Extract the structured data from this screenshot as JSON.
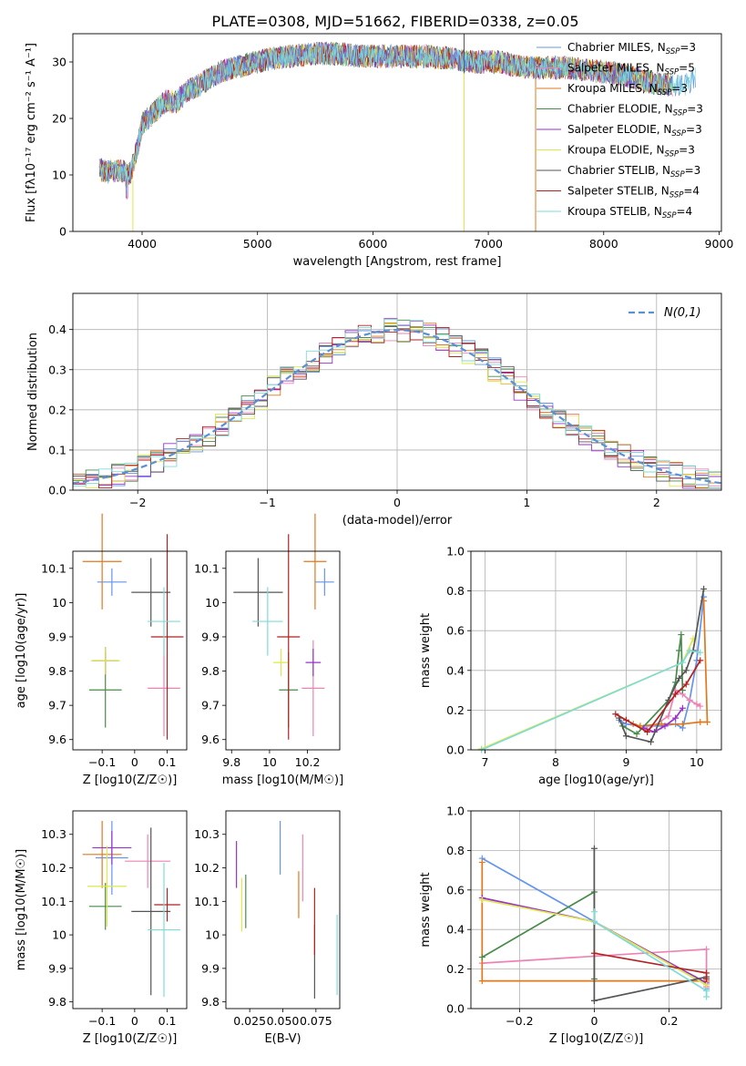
{
  "figure_title": "PLATE=0308, MJD=51662, FIBERID=0338, z=0.05",
  "model_colors": [
    "#6495ed",
    "#ee82b4",
    "#e0781e",
    "#4a8a4a",
    "#9a32cd",
    "#dde84a",
    "#555555",
    "#b22222",
    "#7fdbd6"
  ],
  "chart_data": [
    {
      "type": "line",
      "title": "PLATE=0308, MJD=51662, FIBERID=0338, z=0.05",
      "xlabel": "wavelength [Angstrom, rest frame]",
      "ylabel": "Flux [fλ10⁻¹⁷ erg cm⁻² s⁻¹ A⁻¹]",
      "xlim": [
        3400,
        9020
      ],
      "ylim": [
        0,
        35
      ],
      "xticks": [
        4000,
        5000,
        6000,
        7000,
        8000,
        9000
      ],
      "yticks": [
        0,
        10,
        20,
        30
      ],
      "grid": false,
      "legend": "top-right",
      "legend_entries": [
        "Chabrier MILES, N_SSP=3",
        "Salpeter MILES, N_SSP=5",
        "Kroupa MILES, N_SSP=3",
        "Chabrier ELODIE, N_SSP=3",
        "Salpeter ELODIE, N_SSP=3",
        "Kroupa ELODIE, N_SSP=3",
        "Chabrier STELIB, N_SSP=3",
        "Salpeter STELIB, N_SSP=4",
        "Kroupa STELIB, N_SSP=4"
      ],
      "spectrum_envelope": {
        "x": [
          3630,
          3700,
          3800,
          3900,
          3950,
          4000,
          4100,
          4200,
          4300,
          4400,
          4500,
          4700,
          4900,
          5100,
          5300,
          5500,
          5700,
          5900,
          6100,
          6300,
          6500,
          6700,
          6900,
          7100,
          7300,
          7500,
          7700,
          7900,
          8100,
          8300,
          8500,
          8700,
          8800
        ],
        "y": [
          11,
          10.5,
          10.8,
          10.2,
          14,
          19,
          21,
          23,
          23,
          25,
          26,
          28.5,
          29.5,
          30.5,
          31,
          31.5,
          31.5,
          31,
          31,
          31,
          31,
          30.5,
          30,
          30,
          29,
          29,
          29,
          28.5,
          28,
          27,
          26,
          26,
          27
        ]
      }
    },
    {
      "type": "bar",
      "xlabel": "(data-model)/error",
      "ylabel": "Normed distribution",
      "xlim": [
        -2.5,
        2.5
      ],
      "ylim": [
        0,
        0.49
      ],
      "xticks": [
        -2,
        -1,
        0,
        1,
        2
      ],
      "yticks": [
        0.0,
        0.1,
        0.2,
        0.3,
        0.4
      ],
      "grid": true,
      "legend": "top-right",
      "gaussian_label": "N(0,1)",
      "bin_width": 0.1
    },
    {
      "type": "scatter",
      "xlabel": "Z [log10(Z/Z☉)]",
      "ylabel": "age  [log10(age/yr)]",
      "xlim": [
        -0.19,
        0.16
      ],
      "ylim": [
        9.57,
        10.15
      ],
      "xticks": [
        -0.1,
        0.0,
        0.1
      ],
      "yticks": [
        9.6,
        9.7,
        9.8,
        9.9,
        10.0,
        10.1
      ],
      "points": [
        {
          "x": -0.07,
          "y": 10.06,
          "xerr": 0.045,
          "yerr": 0.04
        },
        {
          "x": 0.09,
          "y": 9.75,
          "xerr": 0.05,
          "yerr": 0.14
        },
        {
          "x": -0.1,
          "y": 10.12,
          "xerr": 0.06,
          "yerr": 0.14
        },
        {
          "x": -0.09,
          "y": 9.745,
          "xerr": 0.05,
          "yerr": 0.11
        },
        {
          "x": -0.09,
          "y": 9.83,
          "xerr": 0.04,
          "yerr": 0.04
        },
        {
          "x": -0.09,
          "y": 9.83,
          "xerr": 0.045,
          "yerr": 0.04
        },
        {
          "x": 0.05,
          "y": 10.03,
          "xerr": 0.06,
          "yerr": 0.1
        },
        {
          "x": 0.1,
          "y": 9.9,
          "xerr": 0.05,
          "yerr": 0.3
        },
        {
          "x": 0.09,
          "y": 9.945,
          "xerr": 0.05,
          "yerr": 0.1
        }
      ]
    },
    {
      "type": "scatter",
      "xlabel": "mass [log10(M/M☉)]",
      "ylabel": "",
      "xlim": [
        9.77,
        10.37
      ],
      "ylim": [
        9.57,
        10.15
      ],
      "xticks": [
        9.8,
        10.0,
        10.2
      ],
      "yticks": [
        9.6,
        9.7,
        9.8,
        9.9,
        10.0,
        10.1
      ],
      "points": [
        {
          "x": 10.29,
          "y": 10.06,
          "xerr": 0.05,
          "yerr": 0.04
        },
        {
          "x": 10.23,
          "y": 9.75,
          "xerr": 0.06,
          "yerr": 0.14
        },
        {
          "x": 10.24,
          "y": 10.12,
          "xerr": 0.06,
          "yerr": 0.14
        },
        {
          "x": 10.1,
          "y": 9.745,
          "xerr": 0.05,
          "yerr": 0.11
        },
        {
          "x": 10.23,
          "y": 9.825,
          "xerr": 0.04,
          "yerr": 0.04
        },
        {
          "x": 10.06,
          "y": 9.825,
          "xerr": 0.04,
          "yerr": 0.04
        },
        {
          "x": 9.94,
          "y": 10.03,
          "xerr": 0.13,
          "yerr": 0.1
        },
        {
          "x": 10.1,
          "y": 9.9,
          "xerr": 0.06,
          "yerr": 0.3
        },
        {
          "x": 9.99,
          "y": 9.945,
          "xerr": 0.08,
          "yerr": 0.1
        }
      ]
    },
    {
      "type": "line",
      "xlabel": "age  [log10(age/yr)]",
      "ylabel": "mass weight",
      "xlim": [
        6.8,
        10.35
      ],
      "ylim": [
        0,
        1.0
      ],
      "xticks": [
        7,
        8,
        9,
        10
      ],
      "yticks": [
        0.0,
        0.2,
        0.4,
        0.6,
        0.8,
        1.0
      ],
      "grid": true,
      "series": [
        {
          "x": [
            8.9,
            9.0,
            9.2,
            9.5,
            9.7,
            9.8,
            9.9,
            10.0,
            10.1
          ],
          "y": [
            0.15,
            0.13,
            0.12,
            0.12,
            0.13,
            0.11,
            0.25,
            0.45,
            0.77
          ]
        },
        {
          "x": [
            9.3,
            9.6,
            9.7,
            9.8,
            9.9,
            10.0,
            10.05
          ],
          "y": [
            0.1,
            0.17,
            0.3,
            0.28,
            0.25,
            0.23,
            0.22
          ]
        },
        {
          "x": [
            9.1,
            9.2,
            9.5,
            9.8,
            10.05,
            10.15,
            10.1
          ],
          "y": [
            0.13,
            0.12,
            0.13,
            0.13,
            0.14,
            0.14,
            0.75
          ]
        },
        {
          "x": [
            8.95,
            9.15,
            9.6,
            9.7,
            9.75,
            9.78,
            9.8
          ],
          "y": [
            0.12,
            0.08,
            0.25,
            0.34,
            0.5,
            0.58,
            0.3
          ]
        },
        {
          "x": [
            9.25,
            9.4,
            9.55,
            9.7,
            9.8
          ],
          "y": [
            0.11,
            0.09,
            0.12,
            0.16,
            0.21
          ]
        },
        {
          "x": [
            6.95,
            9.8,
            9.95
          ],
          "y": [
            0.005,
            0.44,
            0.56
          ]
        },
        {
          "x": [
            8.9,
            9.0,
            9.35,
            9.6,
            9.75,
            9.85,
            9.95,
            10.1
          ],
          "y": [
            0.16,
            0.07,
            0.04,
            0.25,
            0.36,
            0.4,
            0.5,
            0.81
          ]
        },
        {
          "x": [
            8.85,
            9.0,
            9.3,
            9.7,
            9.85,
            10.05
          ],
          "y": [
            0.18,
            0.15,
            0.09,
            0.28,
            0.33,
            0.45
          ]
        },
        {
          "x": [
            6.95,
            9.8,
            9.9,
            10.05
          ],
          "y": [
            0.0,
            0.44,
            0.5,
            0.49
          ]
        }
      ]
    },
    {
      "type": "scatter",
      "xlabel": "Z [log10(Z/Z☉)]",
      "ylabel": "mass [log10(M/M☉)]",
      "xlim": [
        -0.19,
        0.16
      ],
      "ylim": [
        9.78,
        10.37
      ],
      "xticks": [
        -0.1,
        0.0,
        0.1
      ],
      "yticks": [
        9.8,
        9.9,
        10.0,
        10.1,
        10.2,
        10.3
      ],
      "points": [
        {
          "x": -0.07,
          "y": 10.23,
          "xerr": 0.05,
          "yerr": 0.11
        },
        {
          "x": 0.04,
          "y": 10.22,
          "xerr": 0.07,
          "yerr": 0.08
        },
        {
          "x": -0.1,
          "y": 10.24,
          "xerr": 0.06,
          "yerr": 0.1
        },
        {
          "x": -0.09,
          "y": 10.085,
          "xerr": 0.05,
          "yerr": 0.07
        },
        {
          "x": -0.07,
          "y": 10.26,
          "xerr": 0.06,
          "yerr": 0.05
        },
        {
          "x": -0.085,
          "y": 10.145,
          "xerr": 0.06,
          "yerr": 0.12
        },
        {
          "x": 0.05,
          "y": 10.07,
          "xerr": 0.06,
          "yerr": 0.25
        },
        {
          "x": 0.1,
          "y": 10.09,
          "xerr": 0.04,
          "yerr": 0.05
        },
        {
          "x": 0.09,
          "y": 10.015,
          "xerr": 0.05,
          "yerr": 0.2
        }
      ]
    },
    {
      "type": "scatter",
      "xlabel": "E(B-V)",
      "ylabel": "",
      "xlim": [
        0.007,
        0.093
      ],
      "ylim": [
        9.78,
        10.37
      ],
      "xticks": [
        0.025,
        0.05,
        0.075
      ],
      "xtick_labels": [
        "0.025",
        "0.050",
        "0.075"
      ],
      "yticks": [
        9.8,
        9.9,
        10.0,
        10.1,
        10.2,
        10.3
      ],
      "points": [
        {
          "x": 0.048,
          "y": 10.26,
          "xerr": 0.0,
          "yerr": 0.08
        },
        {
          "x": 0.065,
          "y": 10.2,
          "xerr": 0.0,
          "yerr": 0.1
        },
        {
          "x": 0.062,
          "y": 10.12,
          "xerr": 0.0,
          "yerr": 0.07
        },
        {
          "x": 0.022,
          "y": 10.1,
          "xerr": 0.0,
          "yerr": 0.08
        },
        {
          "x": 0.015,
          "y": 10.21,
          "xerr": 0.0,
          "yerr": 0.07
        },
        {
          "x": 0.019,
          "y": 10.09,
          "xerr": 0.0,
          "yerr": 0.08
        },
        {
          "x": 0.074,
          "y": 9.92,
          "xerr": 0.0,
          "yerr": 0.11
        },
        {
          "x": 0.074,
          "y": 10.04,
          "xerr": 0.0,
          "yerr": 0.1
        },
        {
          "x": 0.091,
          "y": 9.94,
          "xerr": 0.0,
          "yerr": 0.12
        }
      ]
    },
    {
      "type": "line",
      "xlabel": "Z [log10(Z/Z☉)]",
      "ylabel": "mass weight",
      "xlim": [
        -0.33,
        0.34
      ],
      "ylim": [
        0,
        1.0
      ],
      "xticks": [
        -0.2,
        0.0,
        0.2
      ],
      "yticks": [
        0.0,
        0.2,
        0.4,
        0.6,
        0.8,
        1.0
      ],
      "grid": true,
      "series": [
        {
          "x": [
            -0.3,
            0.3,
            0.3
          ],
          "y": [
            0.76,
            0.12,
            0.1
          ]
        },
        {
          "x": [
            -0.3,
            0.3,
            0.3,
            0.3
          ],
          "y": [
            0.23,
            0.3,
            0.14,
            0.11
          ]
        },
        {
          "x": [
            -0.3,
            -0.3,
            0.3,
            0.3
          ],
          "y": [
            0.74,
            0.14,
            0.14,
            0.12
          ]
        },
        {
          "x": [
            -0.3,
            0.0,
            0.0
          ],
          "y": [
            0.26,
            0.59,
            0.15
          ]
        },
        {
          "x": [
            -0.3,
            0.0,
            0.3
          ],
          "y": [
            0.56,
            0.44,
            0.13
          ]
        },
        {
          "x": [
            -0.3,
            0.0,
            0.3
          ],
          "y": [
            0.55,
            0.44,
            0.12
          ]
        },
        {
          "x": [
            0.0,
            0.0,
            0.0,
            0.3
          ],
          "y": [
            0.81,
            0.04,
            0.04,
            0.16
          ]
        },
        {
          "x": [
            0.0,
            0.3,
            0.3
          ],
          "y": [
            0.28,
            0.18,
            0.15
          ]
        },
        {
          "x": [
            0.0,
            0.0,
            0.3,
            0.3
          ],
          "y": [
            0.49,
            0.44,
            0.09,
            0.06
          ]
        }
      ]
    }
  ]
}
